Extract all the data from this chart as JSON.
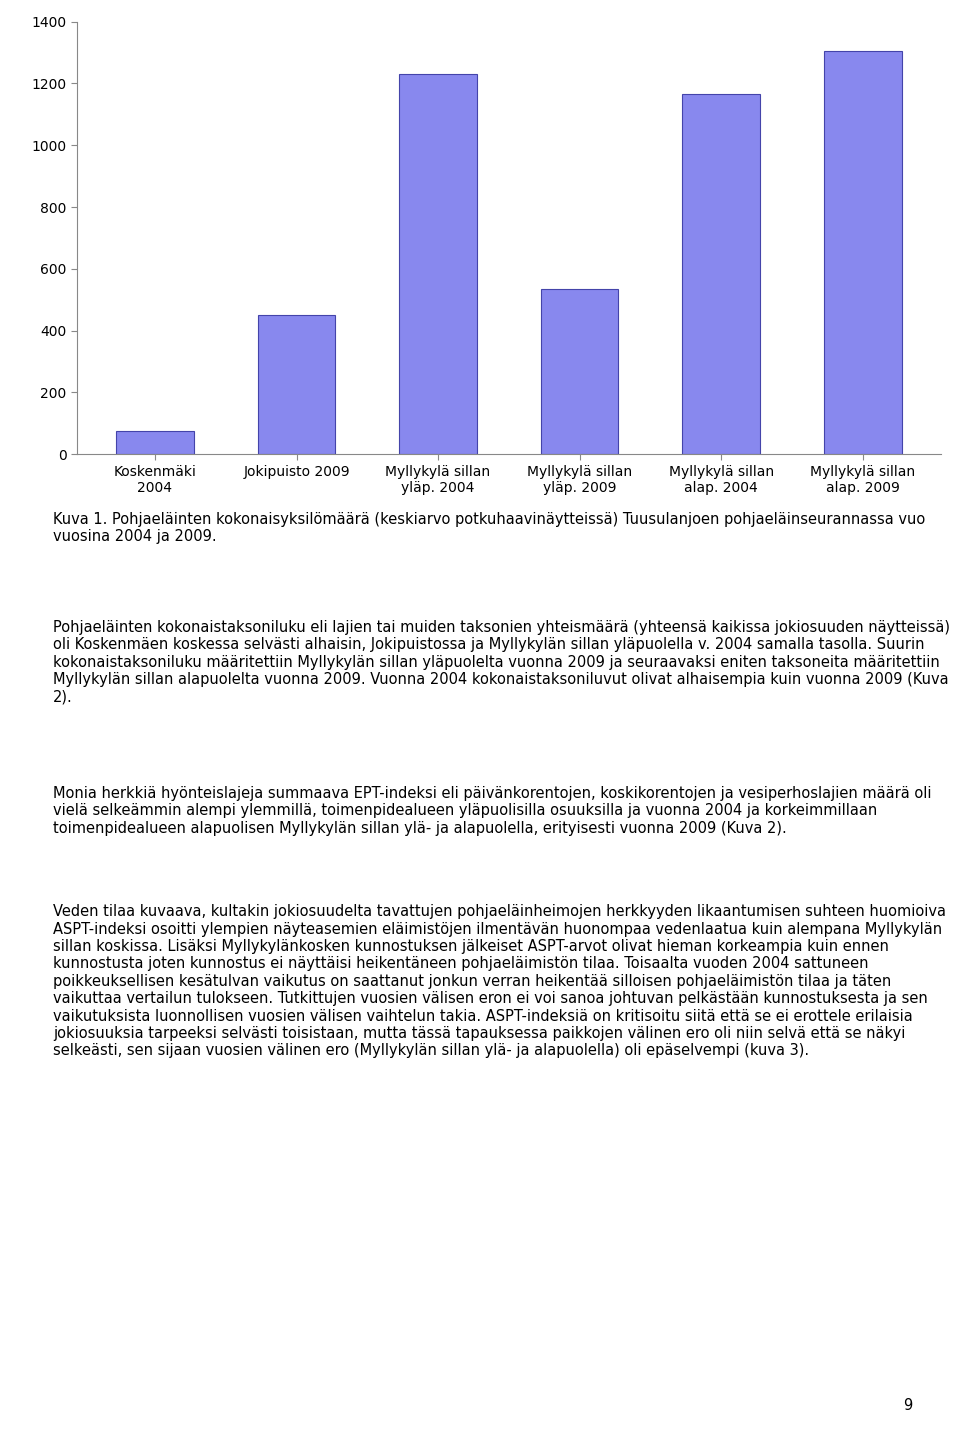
{
  "categories": [
    "Koskenmäki\n2004",
    "Jokipuisto 2009",
    "Myllykylä sillan\nyläp. 2004",
    "Myllykylä sillan\nyläp. 2009",
    "Myllykylä sillan\nalap. 2004",
    "Myllykylä sillan\nalap. 2009"
  ],
  "values": [
    75,
    450,
    1230,
    535,
    1165,
    1305
  ],
  "bar_color": "#8888EE",
  "bar_edgecolor": "#4444AA",
  "legend_color": "#8888EE",
  "legend_edgecolor": "#4444AA",
  "ylim": [
    0,
    1400
  ],
  "yticks": [
    0,
    200,
    400,
    600,
    800,
    1000,
    1200,
    1400
  ],
  "background_color": "#ffffff",
  "bar_width": 0.55,
  "tick_fontsize": 10,
  "legend_fontsize": 10,
  "caption": "Kuva 1. Pohjaeläinten kokonaisyksilömäärä (keskiarvo potkuhaavinäytteissä) Tuusulanjoen pohjaeläinseurannassa vuo vuosina 2004 ja 2009.",
  "para1": "Pohjaeläinten kokonaistaksoniluku eli lajien tai muiden taksonien yhteismäärä (yhteensä kaikissa jokiosuuden näytteissä) oli Koskenmäen koskessa selvästi alhaisin, Jokipuistossa ja Myllykylän sillan yläpuolella v. 2004 samalla tasolla. Suurin kokonaistaksoniluku määritettiin Myllykylän sillan yläpuolelta vuonna 2009 ja seuraavaksi eniten taksoneita määritettiin Myllykylän sillan alapuolelta vuonna 2009. Vuonna 2004 kokonaistaksoniluvut olivat alhaisempia kuin vuonna 2009 (Kuva 2).",
  "para2": "Monia herkkiä hyönteislajeja summaava EPT-indeksi eli päivänkorentojen, koskikorentojen ja vesiperhoslajien määrä oli vielä selkeämmin alempi ylemmillä, toimenpidealueen yläpuolisilla osuuksilla ja vuonna 2004 ja korkeimmillaan toimenpidealueen alapuolisen Myllykylän sillan ylä- ja alapuolella, erityisesti vuonna 2009 (Kuva 2).",
  "para3": "Veden tilaa kuvaava, kultakin jokiosuudelta tavattujen pohjaeläinheimojen herkkyyden likaantumisen suhteen huomioiva ASPT-indeksi osoitti ylempien näyteasemien eläimistöjen ilmentävän huonompaa vedenlaatua kuin alempana Myllykylän sillan koskissa. Lisäksi Myllykylänkosken kunnostuksen jälkeiset ASPT-arvot olivat hieman korkeampia kuin ennen kunnostusta joten kunnostus ei näyttäisi heikentäneen pohjaeläimistön tilaa. Toisaalta vuoden 2004 sattuneen poikkeuksellisen kesätulvan vaikutus on saattanut jonkun verran heikentää silloisen pohjaeläimistön tilaa ja täten vaikuttaa vertailun tulokseen. Tutkittujen vuosien välisen eron ei voi sanoa johtuvan pelkästään kunnostuksesta ja sen vaikutuksista luonnollisen vuosien välisen vaihtelun takia. ASPT-indeksiä on kritisoitu siitä että se ei erottele erilaisia jokiosuuksia tarpeeksi selvästi toisistaan, mutta tässä tapauksessa paikkojen välinen ero oli niin selvä että se näkyi selkeästi, sen sijaan vuosien välinen ero (Myllykylän sillan ylä- ja alapuolella) oli epäselvempi (kuva 3).",
  "page_number": "9"
}
